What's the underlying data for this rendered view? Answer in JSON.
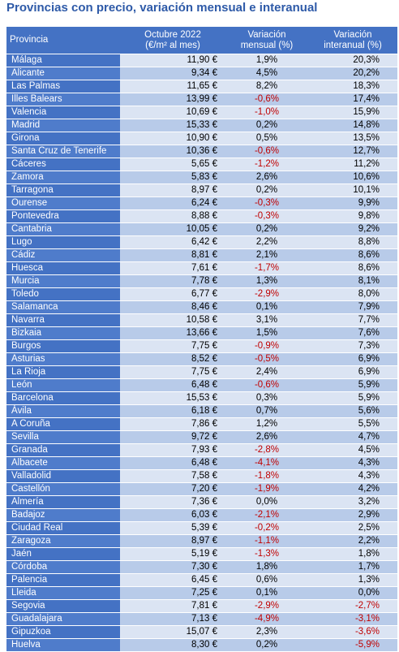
{
  "title": "Provincias con precio, variación mensual e interanual",
  "table": {
    "header": [
      [
        "Provincia"
      ],
      [
        "Octubre 2022",
        "(€/m² al mes)"
      ],
      [
        "Variación",
        "mensual (%)"
      ],
      [
        "Variación",
        "interanual (%)"
      ]
    ],
    "rows": [
      [
        "Málaga",
        "11,90 €",
        "1,9%",
        "20,3%"
      ],
      [
        "Alicante",
        "9,34 €",
        "4,5%",
        "20,2%"
      ],
      [
        "Las Palmas",
        "11,65 €",
        "8,2%",
        "18,3%"
      ],
      [
        "Illes Balears",
        "13,99 €",
        "-0,6%",
        "17,4%"
      ],
      [
        "Valencia",
        "10,69 €",
        "-1,0%",
        "15,9%"
      ],
      [
        "Madrid",
        "15,33 €",
        "0,2%",
        "14,8%"
      ],
      [
        "Girona",
        "10,90 €",
        "0,5%",
        "13,5%"
      ],
      [
        "Santa Cruz de Tenerife",
        "10,36 €",
        "-0,6%",
        "12,7%"
      ],
      [
        "Cáceres",
        "5,65 €",
        "-1,2%",
        "11,2%"
      ],
      [
        "Zamora",
        "5,83 €",
        "2,6%",
        "10,6%"
      ],
      [
        "Tarragona",
        "8,97 €",
        "0,2%",
        "10,1%"
      ],
      [
        "Ourense",
        "6,24 €",
        "-0,3%",
        "9,9%"
      ],
      [
        "Pontevedra",
        "8,88 €",
        "-0,3%",
        "9,8%"
      ],
      [
        "Cantabria",
        "10,05 €",
        "0,2%",
        "9,2%"
      ],
      [
        "Lugo",
        "6,42 €",
        "2,2%",
        "8,8%"
      ],
      [
        "Cádiz",
        "8,81 €",
        "2,1%",
        "8,6%"
      ],
      [
        "Huesca",
        "7,61 €",
        "-1,7%",
        "8,6%"
      ],
      [
        "Murcia",
        "7,78 €",
        "1,3%",
        "8,1%"
      ],
      [
        "Toledo",
        "6,77 €",
        "-2,9%",
        "8,0%"
      ],
      [
        "Salamanca",
        "8,46 €",
        "0,1%",
        "7,9%"
      ],
      [
        "Navarra",
        "10,58 €",
        "3,1%",
        "7,7%"
      ],
      [
        "Bizkaia",
        "13,66 €",
        "1,5%",
        "7,6%"
      ],
      [
        "Burgos",
        "7,75 €",
        "-0,9%",
        "7,3%"
      ],
      [
        "Asturias",
        "8,52 €",
        "-0,5%",
        "6,9%"
      ],
      [
        "La Rioja",
        "7,75 €",
        "2,4%",
        "6,9%"
      ],
      [
        "León",
        "6,48 €",
        "-0,6%",
        "5,9%"
      ],
      [
        "Barcelona",
        "15,53 €",
        "0,3%",
        "5,9%"
      ],
      [
        "Ávila",
        "6,18 €",
        "0,7%",
        "5,6%"
      ],
      [
        "A Coruña",
        "7,86 €",
        "1,2%",
        "5,5%"
      ],
      [
        "Sevilla",
        "9,72 €",
        "2,6%",
        "4,7%"
      ],
      [
        "Granada",
        "7,93 €",
        "-2,8%",
        "4,5%"
      ],
      [
        "Albacete",
        "6,48 €",
        "-4,1%",
        "4,3%"
      ],
      [
        "Valladolid",
        "7,58 €",
        "-1,8%",
        "4,3%"
      ],
      [
        "Castellón",
        "7,20 €",
        "-1,9%",
        "4,2%"
      ],
      [
        "Almería",
        "7,36 €",
        "0,0%",
        "3,2%"
      ],
      [
        "Badajoz",
        "6,03 €",
        "-2,1%",
        "2,9%"
      ],
      [
        "Ciudad Real",
        "5,39 €",
        "-0,2%",
        "2,5%"
      ],
      [
        "Zaragoza",
        "8,97 €",
        "-1,1%",
        "2,2%"
      ],
      [
        "Jaén",
        "5,19 €",
        "-1,3%",
        "1,8%"
      ],
      [
        "Córdoba",
        "7,30 €",
        "1,8%",
        "1,7%"
      ],
      [
        "Palencia",
        "6,45 €",
        "0,6%",
        "1,3%"
      ],
      [
        "Lleida",
        "7,25 €",
        "0,1%",
        "0,0%"
      ],
      [
        "Segovia",
        "7,81 €",
        "-2,9%",
        "-2,7%"
      ],
      [
        "Guadalajara",
        "7,13 €",
        "-4,9%",
        "-3,1%"
      ],
      [
        "Gipuzkoa",
        "15,07 €",
        "2,3%",
        "-3,6%"
      ],
      [
        "Huelva",
        "8,30 €",
        "0,2%",
        "-5,9%"
      ]
    ]
  }
}
